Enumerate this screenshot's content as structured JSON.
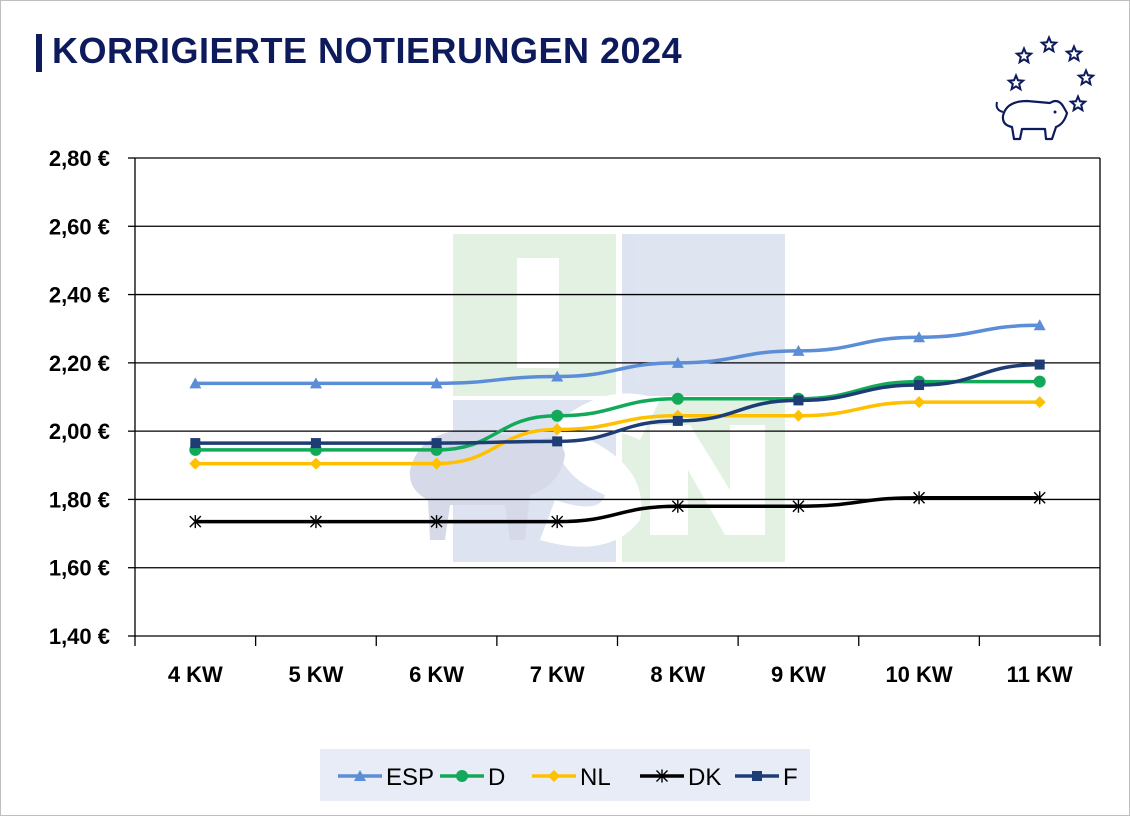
{
  "title": "KORRIGIERTE NOTIERUNGEN 2024",
  "logo_icon": "pig-with-stars-icon",
  "watermark_icon": "isn-watermark-logo",
  "watermark_text": "ISN",
  "colors": {
    "title": "#0d1a5c",
    "ESP": "#5b8ed6",
    "D": "#13a95a",
    "NL": "#ffc000",
    "DK": "#000000",
    "F": "#1f3d75"
  },
  "chart_data": {
    "type": "line",
    "title": "KORRIGIERTE NOTIERUNGEN 2024",
    "xlabel": "",
    "ylabel": "",
    "categories": [
      "4 KW",
      "5 KW",
      "6 KW",
      "7 KW",
      "8 KW",
      "9 KW",
      "10 KW",
      "11 KW"
    ],
    "ylim": [
      1.4,
      2.8
    ],
    "yticks": [
      1.4,
      1.6,
      1.8,
      2.0,
      2.2,
      2.4,
      2.6,
      2.8
    ],
    "ytick_labels": [
      "1,40 €",
      "1,60 €",
      "1,80 €",
      "2,00 €",
      "2,20 €",
      "2,40 €",
      "2,60 €",
      "2,80 €"
    ],
    "grid": true,
    "legend_position": "bottom",
    "series": [
      {
        "name": "ESP",
        "marker": "triangle",
        "values": [
          2.14,
          2.14,
          2.14,
          2.16,
          2.2,
          2.235,
          2.275,
          2.31
        ]
      },
      {
        "name": "D",
        "marker": "circle",
        "values": [
          1.945,
          1.945,
          1.945,
          2.045,
          2.095,
          2.095,
          2.145,
          2.145
        ]
      },
      {
        "name": "NL",
        "marker": "diamond",
        "values": [
          1.905,
          1.905,
          1.905,
          2.005,
          2.045,
          2.045,
          2.085,
          2.085
        ]
      },
      {
        "name": "DK",
        "marker": "star",
        "values": [
          1.735,
          1.735,
          1.735,
          1.735,
          1.78,
          1.78,
          1.805,
          1.805
        ]
      },
      {
        "name": "F",
        "marker": "square",
        "values": [
          1.965,
          1.965,
          1.965,
          1.97,
          2.03,
          2.09,
          2.135,
          2.195
        ]
      }
    ]
  }
}
